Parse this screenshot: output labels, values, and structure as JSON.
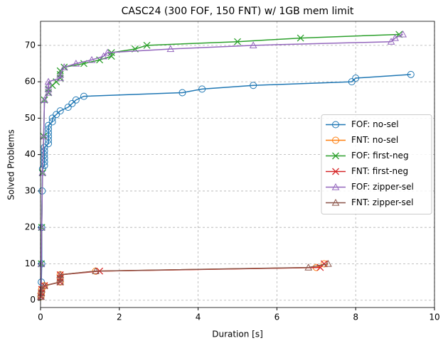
{
  "chart_data": {
    "type": "line",
    "title": "CASC24 (300 FOF, 150 FNT) w/ 1GB mem limit",
    "x_label": "Duration [s]",
    "y_label": "Solved Problems",
    "xlim": [
      0,
      10
    ],
    "ylim": [
      -2,
      76.6
    ],
    "xticks": [
      0,
      2,
      4,
      6,
      8,
      10
    ],
    "yticks": [
      0,
      10,
      20,
      30,
      40,
      50,
      60,
      70
    ],
    "grid": true,
    "legend": "center right",
    "series": [
      {
        "name": "FOF: no-sel",
        "color": "#1f77b4",
        "marker": "circle",
        "x": [
          0.01,
          0.02,
          0.03,
          0.03,
          0.04,
          0.05,
          0.1,
          0.1,
          0.1,
          0.1,
          0.1,
          0.1,
          0.2,
          0.2,
          0.2,
          0.2,
          0.2,
          0.2,
          0.3,
          0.3,
          0.4,
          0.5,
          0.7,
          0.8,
          0.9,
          1.1,
          3.6,
          4.1,
          5.4,
          7.9,
          8.0,
          9.4
        ],
        "values": [
          1,
          5,
          10,
          20,
          30,
          36,
          37,
          38,
          39,
          40,
          41,
          42,
          43,
          44,
          45,
          46,
          47,
          48,
          49,
          50,
          51,
          52,
          53,
          54,
          55,
          56,
          57,
          58,
          59,
          60,
          61,
          62
        ]
      },
      {
        "name": "FNT: no-sel",
        "color": "#ff7f0e",
        "marker": "circle",
        "x": [
          0.01,
          0.02,
          0.03,
          0.1,
          0.5,
          0.5,
          0.5,
          1.4,
          7.0,
          7.2
        ],
        "values": [
          1,
          2,
          3,
          4,
          5,
          6,
          7,
          8,
          9,
          10
        ]
      },
      {
        "name": "FOF: first-neg",
        "color": "#2ca02c",
        "marker": "x",
        "x": [
          0.01,
          0.02,
          0.03,
          0.05,
          0.08,
          0.1,
          0.2,
          0.2,
          0.3,
          0.4,
          0.5,
          0.5,
          0.5,
          0.6,
          1.1,
          1.5,
          1.8,
          1.8,
          2.4,
          2.7,
          5.0,
          6.6,
          9.1
        ],
        "values": [
          1,
          10,
          20,
          35,
          45,
          55,
          57,
          58,
          59,
          60,
          61,
          62,
          63,
          64,
          65,
          66,
          67,
          68,
          69,
          70,
          71,
          72,
          73
        ]
      },
      {
        "name": "FNT: first-neg",
        "color": "#d62728",
        "marker": "x",
        "x": [
          0.01,
          0.02,
          0.03,
          0.1,
          0.5,
          0.5,
          0.5,
          1.5,
          7.1,
          7.2
        ],
        "values": [
          1,
          2,
          3,
          4,
          5,
          6,
          7,
          8,
          9,
          10
        ]
      },
      {
        "name": "FOF: zipper-sel",
        "color": "#9467bd",
        "marker": "triangle",
        "x": [
          0.01,
          0.02,
          0.03,
          0.05,
          0.08,
          0.1,
          0.2,
          0.2,
          0.2,
          0.2,
          0.5,
          0.5,
          0.6,
          0.9,
          1.3,
          1.6,
          1.7,
          3.3,
          5.4,
          8.9,
          9.0,
          9.2
        ],
        "values": [
          1,
          10,
          20,
          35,
          45,
          55,
          57,
          58,
          59,
          60,
          61,
          62,
          64,
          65,
          66,
          67,
          68,
          69,
          70,
          71,
          72,
          73
        ]
      },
      {
        "name": "FNT: zipper-sel",
        "color": "#8c564b",
        "marker": "triangle",
        "x": [
          0.01,
          0.02,
          0.03,
          0.1,
          0.5,
          0.5,
          0.5,
          1.4,
          6.8,
          7.3
        ],
        "values": [
          1,
          2,
          3,
          4,
          5,
          6,
          7,
          8,
          9,
          10
        ]
      }
    ]
  }
}
